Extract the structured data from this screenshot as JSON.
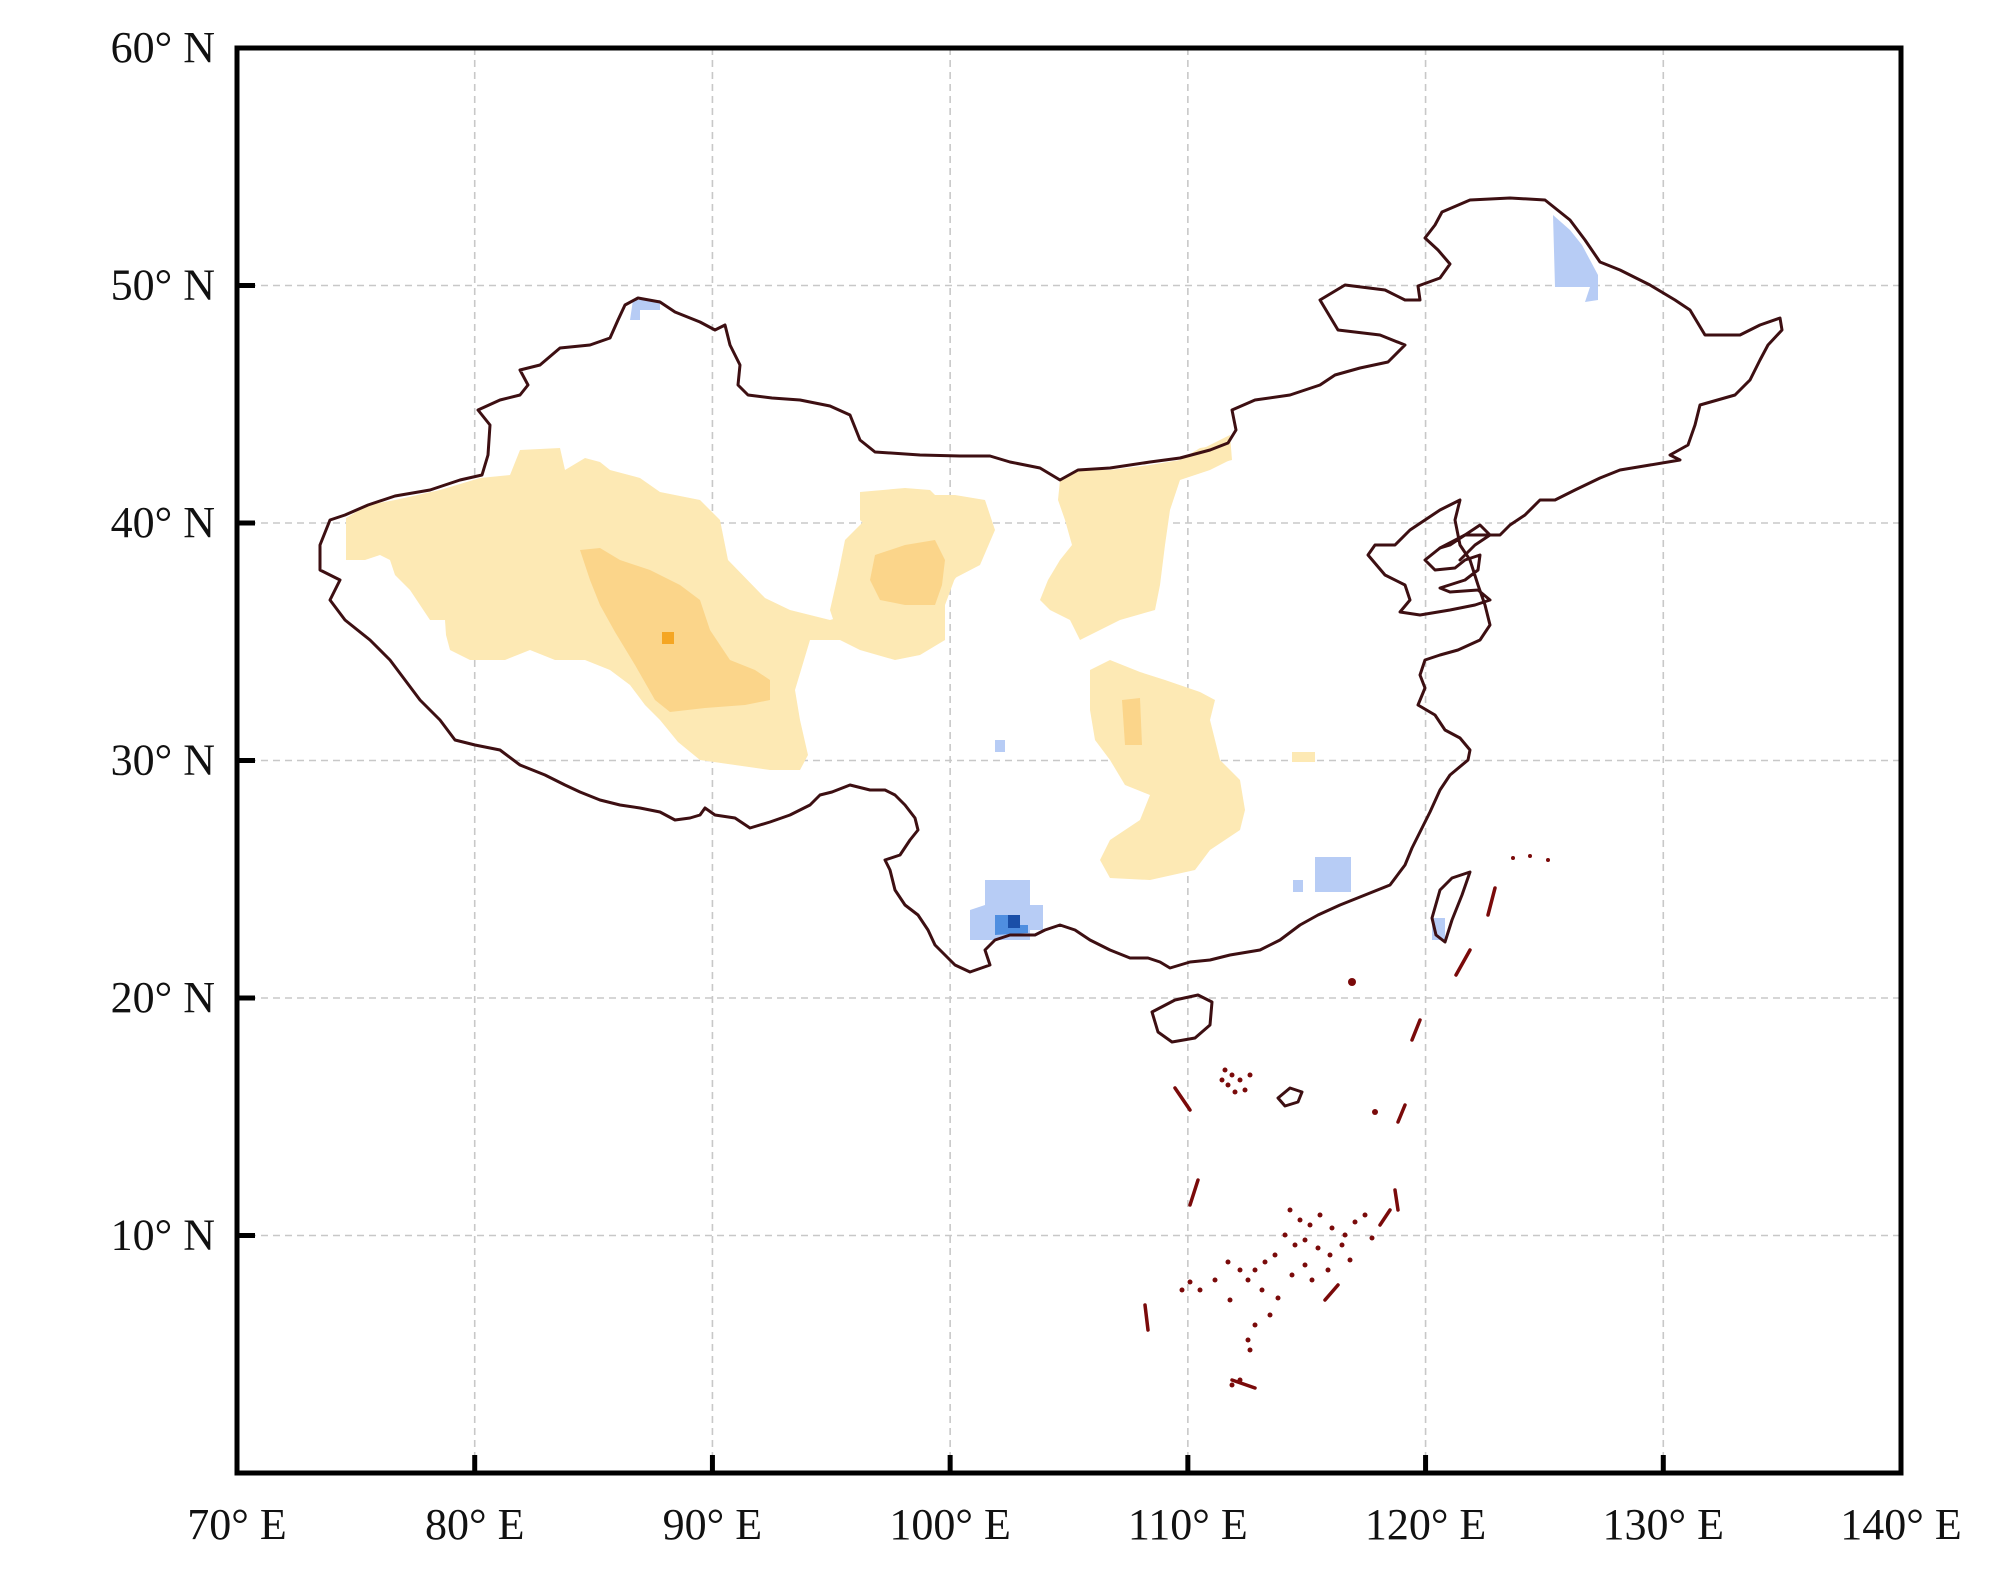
{
  "map": {
    "axes": {
      "lon_min": 70,
      "lon_max": 140,
      "lat_min": 0,
      "lat_max": 60,
      "x_ticks": [
        {
          "value": 70,
          "label": "70° E"
        },
        {
          "value": 80,
          "label": "80° E"
        },
        {
          "value": 90,
          "label": "90° E"
        },
        {
          "value": 100,
          "label": "100° E"
        },
        {
          "value": 110,
          "label": "110° E"
        },
        {
          "value": 120,
          "label": "120° E"
        },
        {
          "value": 130,
          "label": "130° E"
        },
        {
          "value": 140,
          "label": "140° E"
        }
      ],
      "y_ticks": [
        {
          "value": 60,
          "label": "60° N"
        },
        {
          "value": 50,
          "label": "50° N"
        },
        {
          "value": 40,
          "label": "40° N"
        },
        {
          "value": 30,
          "label": "30° N"
        },
        {
          "value": 20,
          "label": "20° N"
        },
        {
          "value": 10,
          "label": "10° N"
        }
      ],
      "grid": true
    },
    "colors": {
      "border": "#3d0f12",
      "nine_dash": "#7a0a0a",
      "warm_light": "#fde9b4",
      "warm_mid": "#fbd58a",
      "warm_strong": "#f5a623",
      "cool_light": "#b7ccf5",
      "cool_mid": "#4f8ee0",
      "cool_strong": "#1a4fa8"
    }
  }
}
